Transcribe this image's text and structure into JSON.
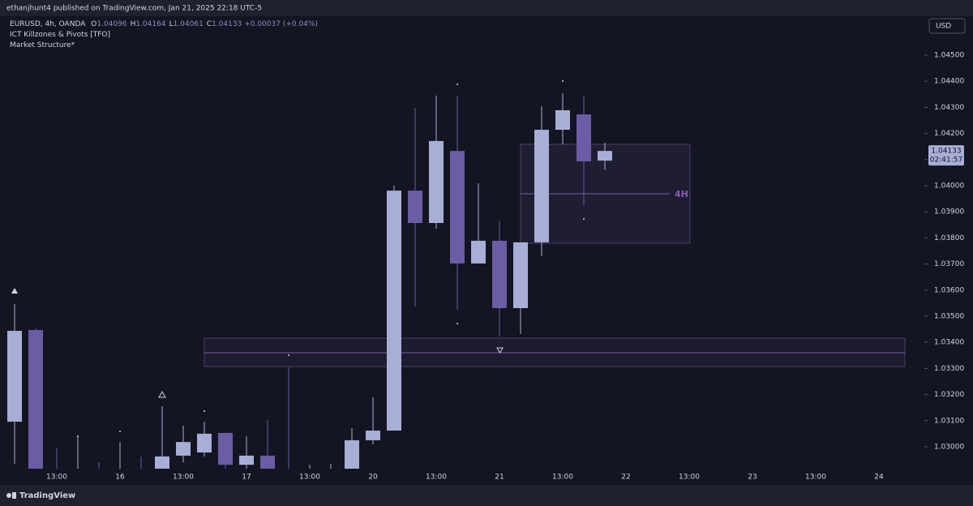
{
  "header": {
    "attribution": "ethanjhunt4 published on TradingView.com, Jan 21, 2025 22:18 UTC-5"
  },
  "toolbar": {
    "currency": "USD"
  },
  "footer": {
    "logo": "TradingView"
  },
  "legend": {
    "symbol": "EURUSD, 4h, OANDA",
    "items": [
      {
        "key": "O",
        "value": "1.04096"
      },
      {
        "key": "H",
        "value": "1.04164"
      },
      {
        "key": "L",
        "value": "1.04061"
      },
      {
        "key": "C",
        "value": "1.04133"
      }
    ],
    "change": "+0.00037 (+0.04%)",
    "indicators": [
      "ICT Killzones & Pivots [TFO]",
      "Market Structure*"
    ]
  },
  "chart_data": {
    "type": "candlestick",
    "categories": [
      null,
      null,
      "13:00",
      null,
      null,
      "16",
      null,
      null,
      "13:00",
      null,
      null,
      "17",
      null,
      null,
      "13:00",
      null,
      null,
      "20",
      null,
      null,
      "13:00",
      null,
      null,
      "21",
      null,
      null,
      "13:00",
      null,
      null,
      "22",
      null,
      null,
      "13:00",
      null,
      null,
      "23",
      null,
      null,
      "13:00",
      null,
      null,
      "24"
    ],
    "open": [
      1.03096,
      1.03447,
      1.029,
      1.0289,
      1.029,
      1.0289,
      1.029,
      1.029,
      1.02966,
      1.02978,
      1.03053,
      1.02931,
      1.02966,
      1.029,
      1.0289,
      1.0289,
      1.029,
      1.03025,
      1.03062,
      1.03981,
      1.03857,
      1.04133,
      1.03702,
      1.03789,
      1.03531,
      1.03783,
      1.04214,
      1.04273,
      1.04096,
      null,
      null,
      null,
      null,
      null,
      null,
      null,
      null,
      null,
      null,
      null,
      null,
      null
    ],
    "high": [
      1.03546,
      1.03453,
      1.02994,
      1.0304,
      1.02941,
      1.03018,
      1.02962,
      1.03155,
      1.03081,
      1.03096,
      1.03053,
      1.0304,
      1.03102,
      1.03304,
      1.02931,
      1.02935,
      1.03071,
      1.03189,
      1.04,
      1.04298,
      1.04345,
      1.04345,
      1.04009,
      1.03866,
      1.03783,
      1.04304,
      1.04354,
      1.04342,
      1.04164,
      null,
      null,
      null,
      null,
      null,
      null,
      null,
      null,
      null,
      null,
      null,
      null,
      null
    ],
    "low": [
      1.02935,
      1.0285,
      1.0285,
      1.0285,
      1.0285,
      1.0285,
      1.0285,
      1.0288,
      1.02941,
      1.02963,
      1.0288,
      1.0288,
      1.0287,
      1.0285,
      1.0285,
      1.0285,
      1.0288,
      1.03009,
      1.03062,
      1.03537,
      1.03835,
      1.03525,
      1.03702,
      1.03422,
      1.03432,
      1.0373,
      1.04158,
      1.03925,
      1.04061,
      null,
      null,
      null,
      null,
      null,
      null,
      null,
      null,
      null,
      null,
      null,
      null,
      null
    ],
    "close": [
      1.03444,
      1.0288,
      1.0288,
      1.029,
      1.0289,
      1.029,
      1.0289,
      1.02963,
      1.03018,
      1.0305,
      1.02931,
      1.02966,
      1.0289,
      1.0289,
      1.029,
      1.029,
      1.03025,
      1.03062,
      1.03981,
      1.03857,
      1.04171,
      1.03702,
      1.03789,
      1.03531,
      1.03783,
      1.04214,
      1.04289,
      1.04093,
      1.04133,
      null,
      null,
      null,
      null,
      null,
      null,
      null,
      null,
      null,
      null,
      null,
      null,
      null
    ],
    "up_color": "#a9aed6",
    "down_color": "#6b5ca5",
    "ylim": [
      1.02916,
      1.04649
    ],
    "yticks": [
      {
        "value": 1.03,
        "label": "1.03000"
      },
      {
        "value": 1.031,
        "label": "1.03100"
      },
      {
        "value": 1.032,
        "label": "1.03200"
      },
      {
        "value": 1.033,
        "label": "1.03300"
      },
      {
        "value": 1.034,
        "label": "1.03400"
      },
      {
        "value": 1.035,
        "label": "1.03500"
      },
      {
        "value": 1.036,
        "label": "1.03600"
      },
      {
        "value": 1.037,
        "label": "1.03700"
      },
      {
        "value": 1.038,
        "label": "1.03800"
      },
      {
        "value": 1.039,
        "label": "1.03900"
      },
      {
        "value": 1.04,
        "label": "1.04000"
      },
      {
        "value": 1.041,
        "label": "1.04100"
      },
      {
        "value": 1.042,
        "label": "1.04200"
      },
      {
        "value": 1.043,
        "label": "1.04300"
      },
      {
        "value": 1.044,
        "label": "1.04400"
      },
      {
        "value": 1.045,
        "label": "1.04500"
      }
    ],
    "grid": false,
    "last_price": {
      "value": 1.04133,
      "label": "1.04133"
    },
    "countdown": "02:41:57",
    "zone_label": "4H"
  }
}
